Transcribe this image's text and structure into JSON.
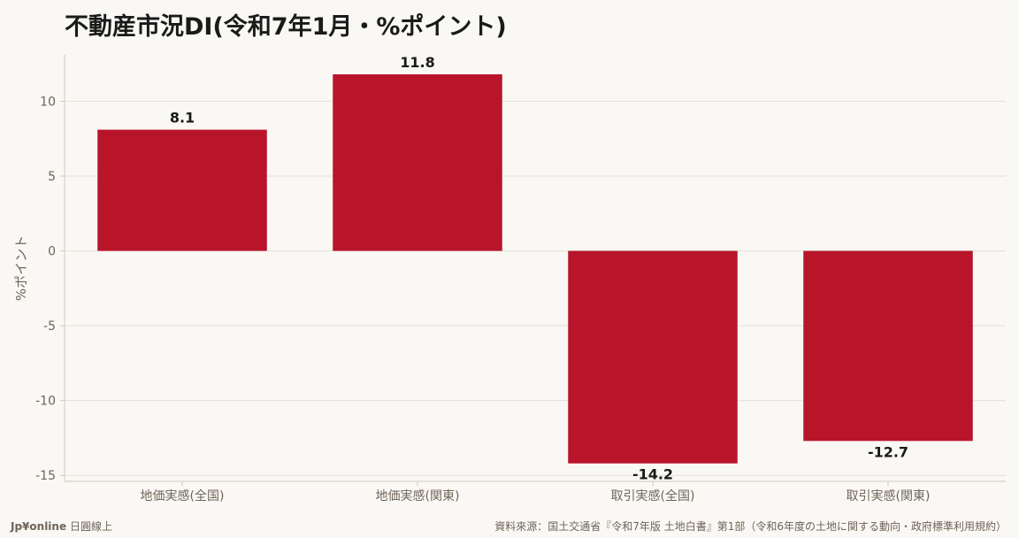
{
  "footer": {
    "brand": "Jp¥online",
    "brand_sub": "日圓線上",
    "source": "資料來源：国土交通省『令和7年版 土地白書』第1部（令和6年度の土地に関する動向・政府標準利用規約）"
  },
  "colors": {
    "bar": "#b8152b",
    "background": "#faf8f4",
    "grid": "#e4e0d8",
    "axis": "#cfc9bd",
    "tick_text": "#6e6458",
    "label_text": "#1a1a1a"
  },
  "chart_data": {
    "type": "bar",
    "title": "不動産市況DI(令和7年1月・%ポイント)",
    "xlabel": "",
    "ylabel": "%ポイント",
    "categories": [
      "地価実感(全国)",
      "地価実感(関東)",
      "取引実感(全国)",
      "取引実感(関東)"
    ],
    "values": [
      8.1,
      11.8,
      -14.2,
      -12.7
    ],
    "value_labels": [
      "8.1",
      "11.8",
      "-14.2",
      "-12.7"
    ],
    "ylim": [
      -15.4,
      13.1
    ],
    "yticks": [
      10,
      5,
      0,
      -5,
      -10,
      -15
    ],
    "grid": true,
    "legend": "none"
  }
}
